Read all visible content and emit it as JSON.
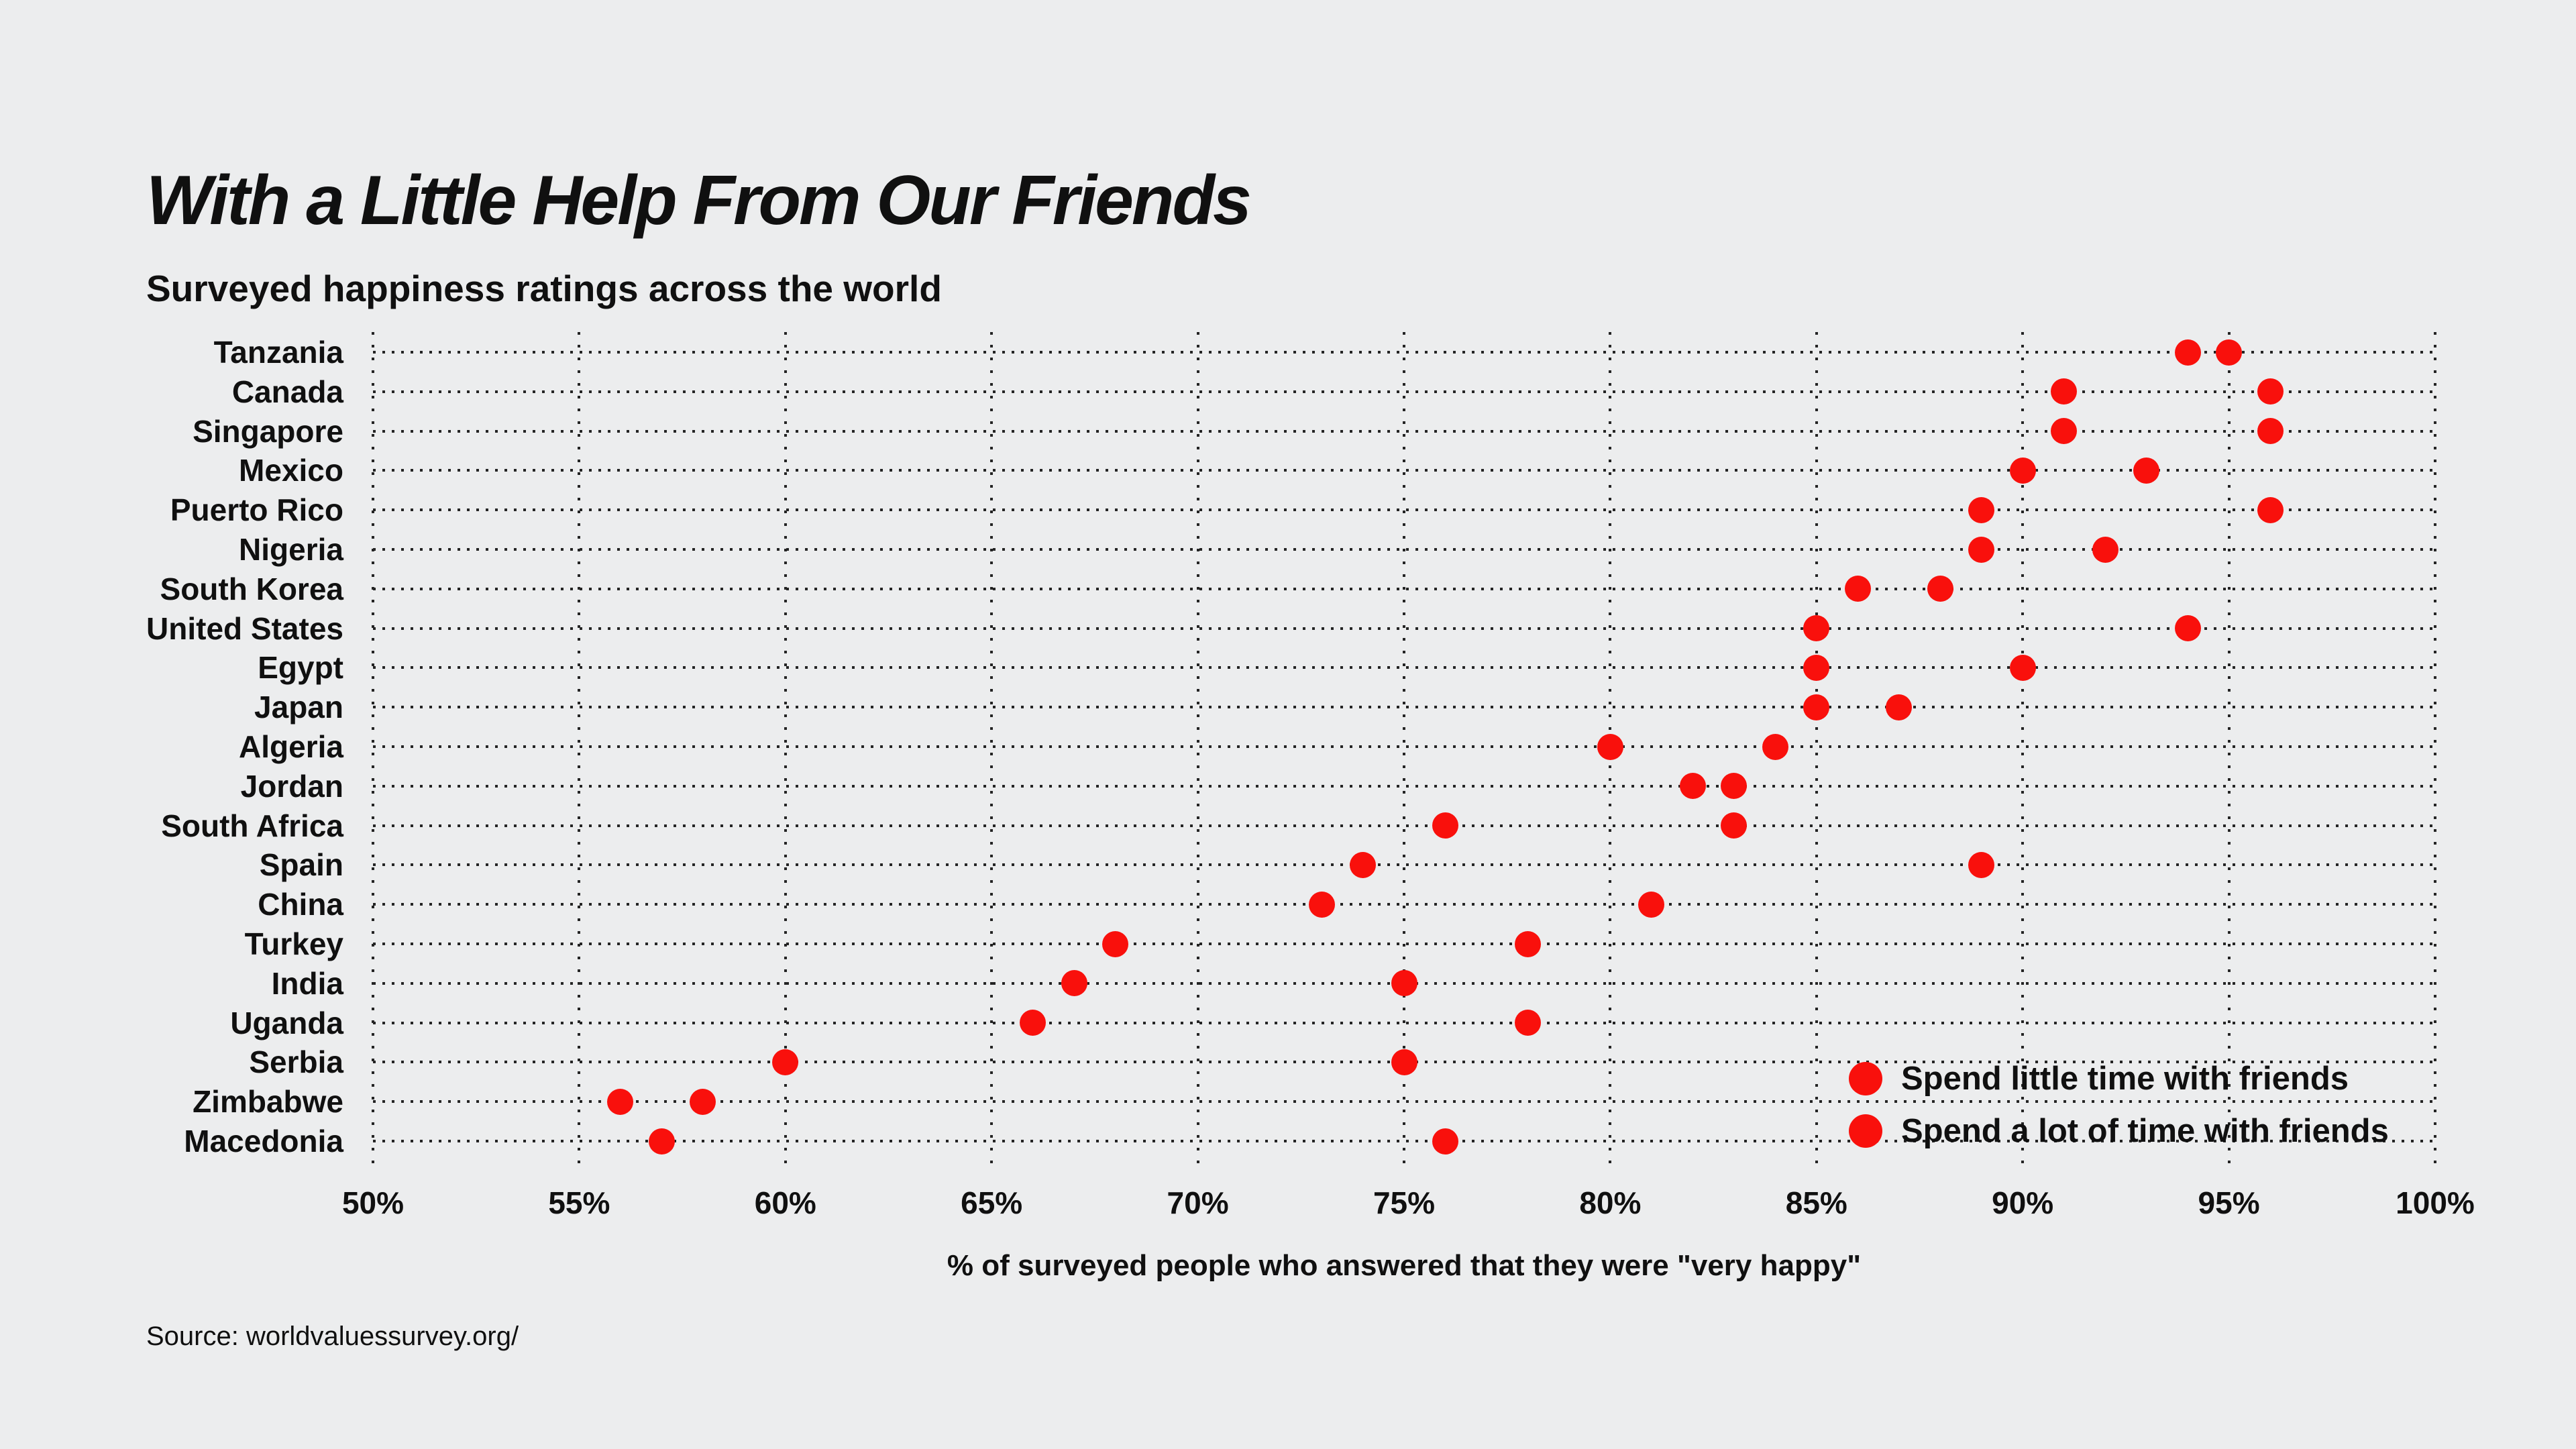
{
  "header": {
    "title": "With a Little Help From Our Friends",
    "subtitle": "Surveyed happiness ratings across the world"
  },
  "axis": {
    "x_title": "% of surveyed people who answered that they were \"very happy\""
  },
  "legend": {
    "items": [
      {
        "label": "Spend little time with friends",
        "color": "#F9100C"
      },
      {
        "label": "Spend a lot of time with friends",
        "color": "#F9100C"
      }
    ]
  },
  "source": "Source: worldvaluessurvey.org/",
  "colors": {
    "background": "#ECEDEE",
    "dot": "#F9100C",
    "text": "#101010",
    "gridline": "#242424"
  },
  "chart_data": {
    "type": "scatter",
    "title": "With a Little Help From Our Friends",
    "subtitle": "Surveyed happiness ratings across the world",
    "xlabel": "% of surveyed people who answered that they were \"very happy\"",
    "xlim": [
      50,
      100
    ],
    "x_ticks": [
      {
        "label": "50%",
        "value": 50
      },
      {
        "label": "55%",
        "value": 55
      },
      {
        "label": "60%",
        "value": 60
      },
      {
        "label": "65%",
        "value": 65
      },
      {
        "label": "70%",
        "value": 70
      },
      {
        "label": "75%",
        "value": 75
      },
      {
        "label": "80%",
        "value": 80
      },
      {
        "label": "85%",
        "value": 85
      },
      {
        "label": "90%",
        "value": 90
      },
      {
        "label": "95%",
        "value": 95
      },
      {
        "label": "100%",
        "value": 100
      }
    ],
    "categories": [
      "Tanzania",
      "Canada",
      "Singapore",
      "Mexico",
      "Puerto Rico",
      "Nigeria",
      "South Korea",
      "United States",
      "Egypt",
      "Japan",
      "Algeria",
      "Jordan",
      "South Africa",
      "Spain",
      "China",
      "Turkey",
      "India",
      "Uganda",
      "Serbia",
      "Zimbabwe",
      "Macedonia"
    ],
    "series": [
      {
        "name": "Spend little time with friends",
        "color": "#F9100C",
        "values": [
          94,
          91,
          91,
          90,
          89,
          89,
          86,
          85,
          85,
          85,
          80,
          82,
          76,
          74,
          73,
          68,
          67,
          66,
          60,
          56,
          57
        ]
      },
      {
        "name": "Spend a lot of time with friends",
        "color": "#F9100C",
        "values": [
          95,
          96,
          96,
          93,
          96,
          92,
          88,
          94,
          90,
          87,
          84,
          83,
          83,
          89,
          81,
          78,
          75,
          78,
          75,
          58,
          76
        ]
      }
    ],
    "grid": "dotted",
    "legend_position": "inside-bottom-right"
  }
}
